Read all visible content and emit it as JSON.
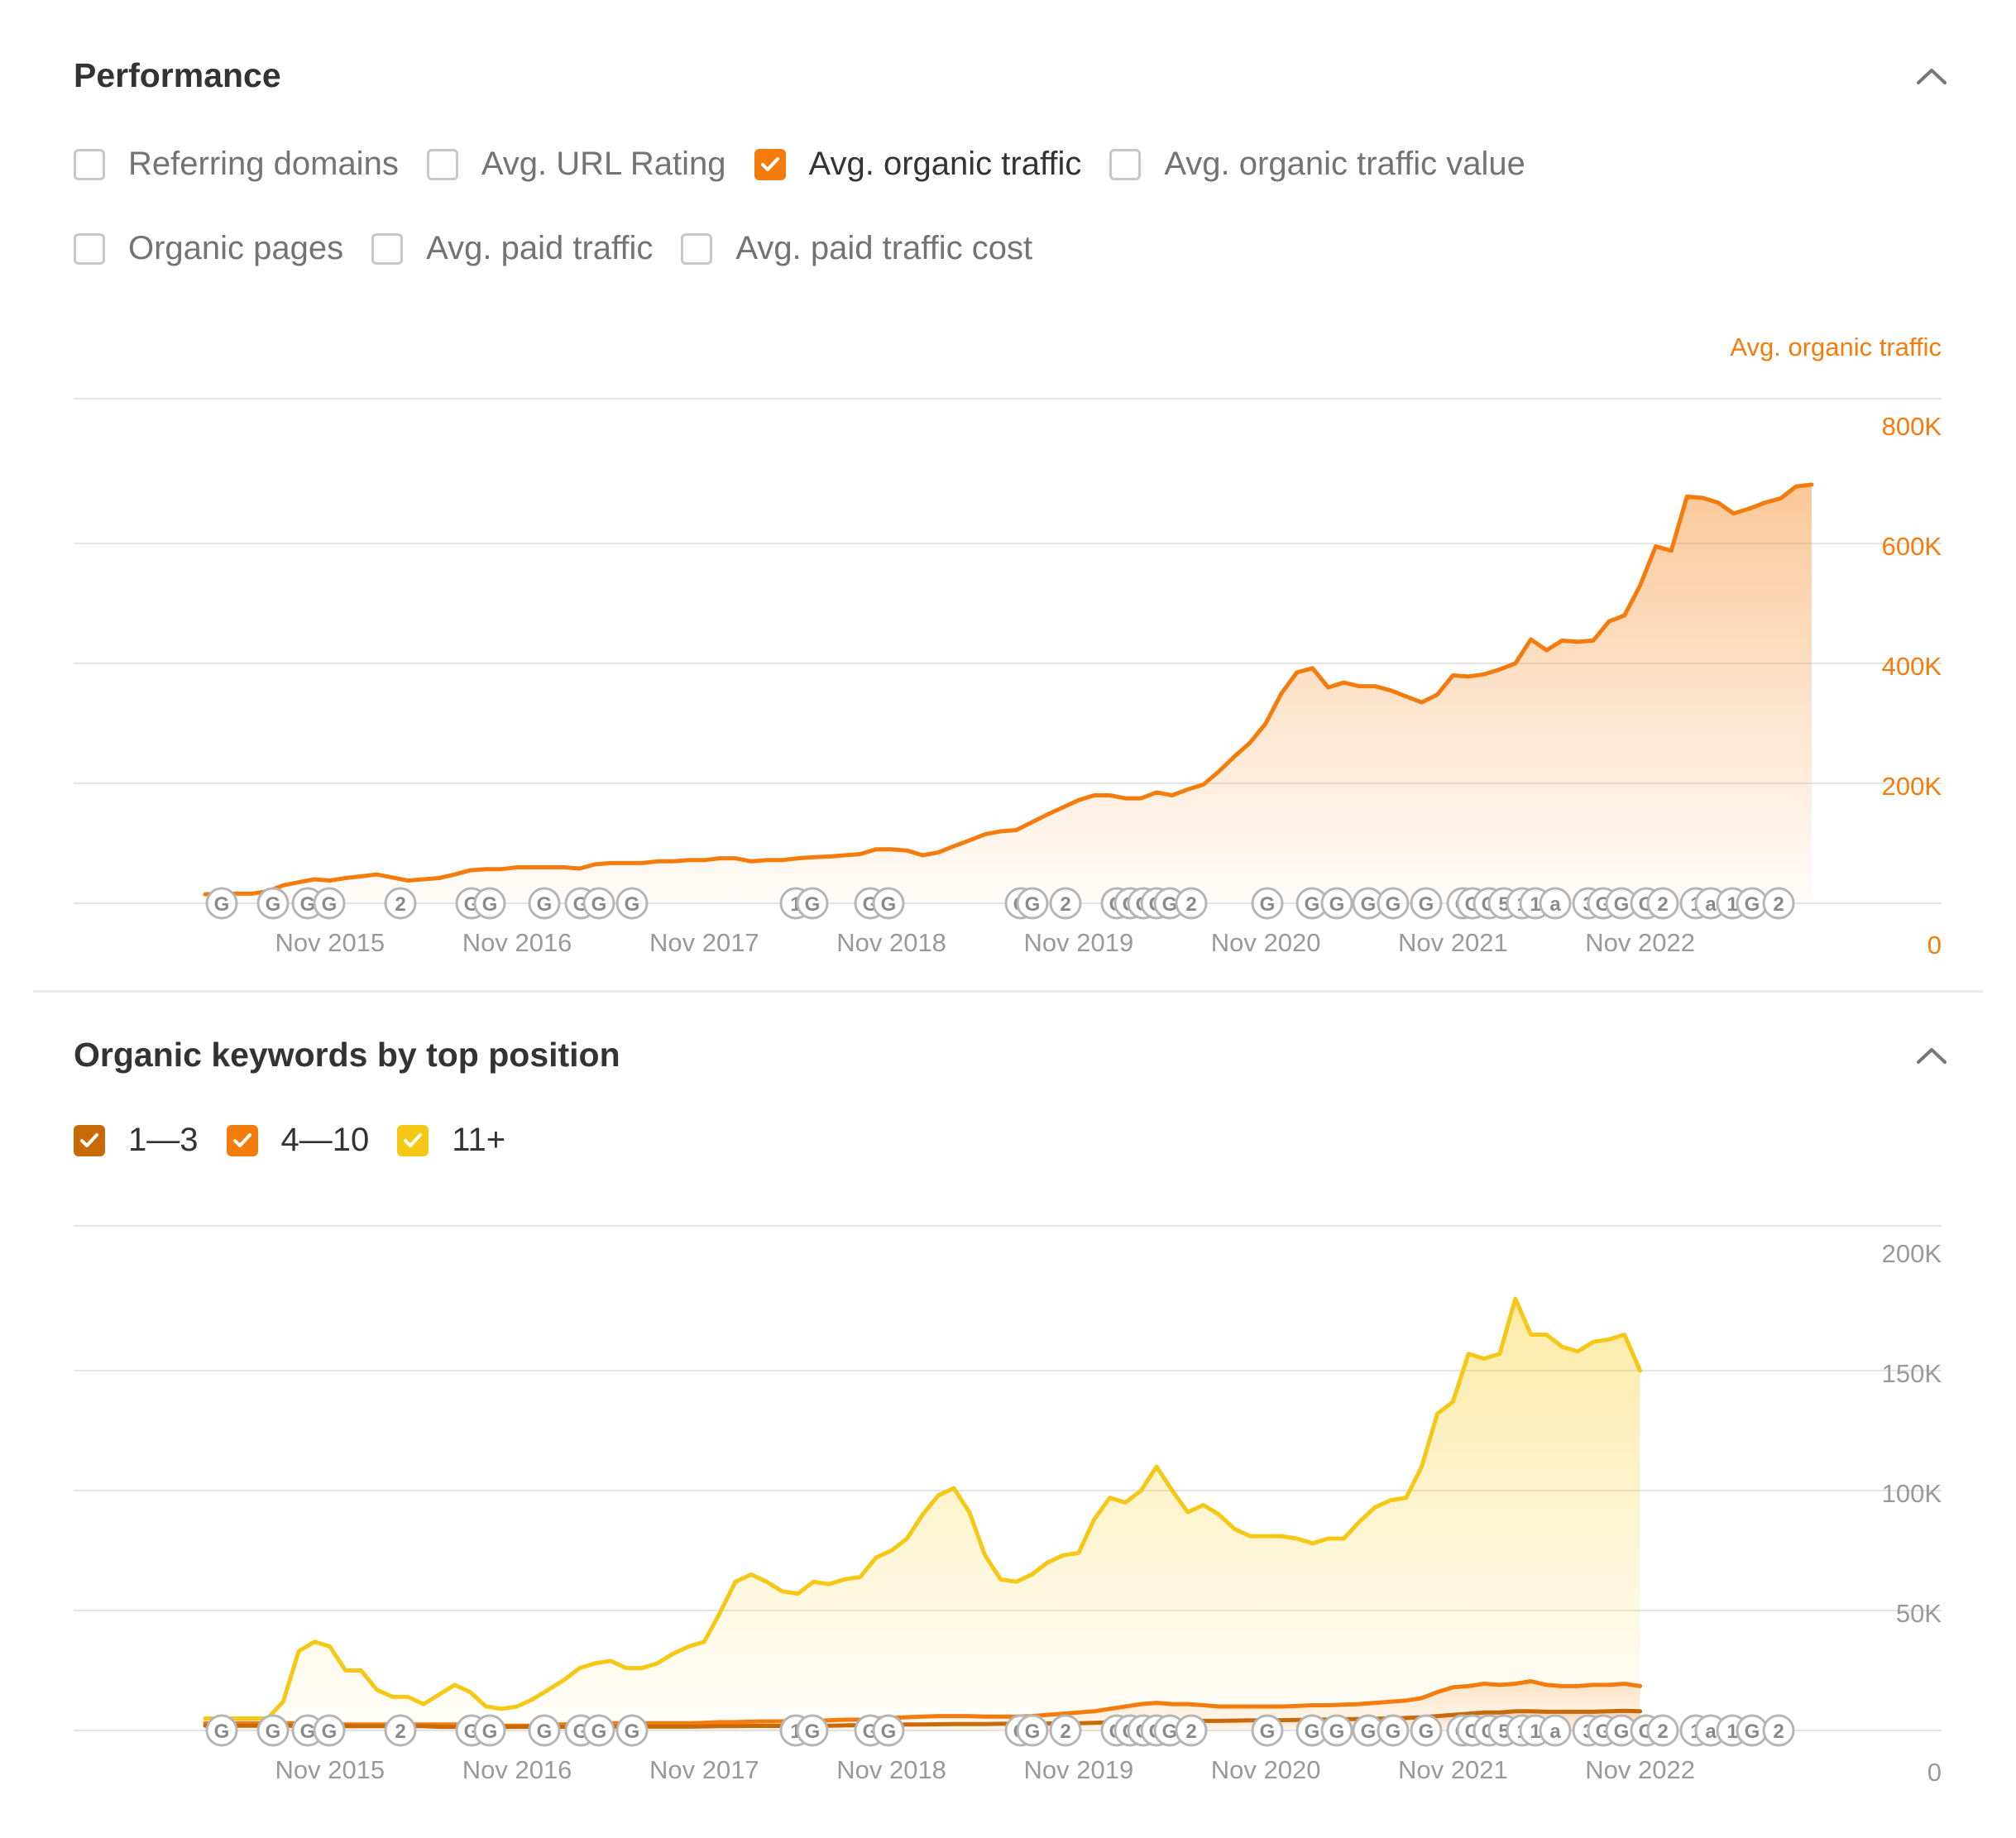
{
  "performance": {
    "title": "Performance",
    "options": [
      {
        "label": "Referring domains",
        "checked": false
      },
      {
        "label": "Avg. URL Rating",
        "checked": false
      },
      {
        "label": "Avg. organic traffic",
        "checked": true,
        "color": "#f47c0c"
      },
      {
        "label": "Avg. organic traffic value",
        "checked": false
      },
      {
        "label": "Organic pages",
        "checked": false
      },
      {
        "label": "Avg. paid traffic",
        "checked": false
      },
      {
        "label": "Avg. paid traffic cost",
        "checked": false
      }
    ],
    "collapse_icon": "chevron-up-icon"
  },
  "keywords": {
    "title": "Organic keywords by top position",
    "legend": [
      {
        "label": "1—3",
        "checked": true,
        "color": "#c86a08"
      },
      {
        "label": "4—10",
        "checked": true,
        "color": "#f47c0c"
      },
      {
        "label": "11+",
        "checked": true,
        "color": "#f6c816"
      }
    ],
    "collapse_icon": "chevron-up-icon"
  },
  "colors": {
    "traffic": "#f47c0c",
    "r13": "#c86a08",
    "r410": "#f47c0c",
    "r11": "#f6c816",
    "grid": "#e4e4e4",
    "tick": "#999999"
  },
  "chart_data": [
    {
      "type": "area",
      "title": "",
      "axis_title": "Avg. organic traffic",
      "x_tick_labels": [
        "Nov 2015",
        "Nov 2016",
        "Nov 2017",
        "Nov 2018",
        "Nov 2019",
        "Nov 2020",
        "Nov 2021",
        "Nov 2022"
      ],
      "y_tick_labels": [
        "0",
        "200K",
        "400K",
        "600K",
        "800K"
      ],
      "ylim": [
        0,
        800000
      ],
      "grid": true,
      "x_start": "2015-03",
      "series": [
        {
          "name": "Avg. organic traffic",
          "color": "#f47c0c",
          "values": [
            15000,
            16000,
            16000,
            16000,
            20000,
            30000,
            35000,
            40000,
            38000,
            42000,
            45000,
            48000,
            43000,
            38000,
            40000,
            42000,
            48000,
            55000,
            57000,
            57000,
            60000,
            60000,
            60000,
            60000,
            58000,
            65000,
            67000,
            67000,
            67000,
            70000,
            70000,
            72000,
            72000,
            75000,
            75000,
            70000,
            72000,
            72000,
            75000,
            77000,
            78000,
            80000,
            82000,
            90000,
            90000,
            88000,
            80000,
            85000,
            95000,
            105000,
            115000,
            120000,
            122000,
            135000,
            148000,
            160000,
            172000,
            180000,
            180000,
            175000,
            175000,
            185000,
            180000,
            190000,
            198000,
            220000,
            245000,
            268000,
            300000,
            350000,
            385000,
            392000,
            360000,
            368000,
            362000,
            362000,
            355000,
            345000,
            335000,
            348000,
            380000,
            378000,
            382000,
            390000,
            400000,
            440000,
            422000,
            438000,
            436000,
            438000,
            470000,
            480000,
            530000,
            595000,
            588000,
            678000,
            676000,
            668000,
            650000,
            658000,
            668000,
            675000,
            695000,
            698000
          ]
        }
      ]
    },
    {
      "type": "area",
      "title": "",
      "x_tick_labels": [
        "Nov 2015",
        "Nov 2016",
        "Nov 2017",
        "Nov 2018",
        "Nov 2019",
        "Nov 2020",
        "Nov 2021",
        "Nov 2022"
      ],
      "y_tick_labels": [
        "0",
        "50K",
        "100K",
        "150K",
        "200K"
      ],
      "ylim": [
        0,
        200000
      ],
      "grid": true,
      "x_start": "2015-03",
      "series": [
        {
          "name": "11+",
          "color": "#f6c816",
          "values": [
            5000,
            5000,
            5000,
            5000,
            5000,
            12000,
            33000,
            37000,
            35000,
            25000,
            25000,
            17000,
            14000,
            14000,
            11000,
            15000,
            19000,
            16000,
            10000,
            9000,
            10000,
            13000,
            17000,
            21000,
            26000,
            28000,
            29000,
            26000,
            26000,
            28000,
            32000,
            35000,
            37000,
            49000,
            62000,
            65000,
            62000,
            58000,
            57000,
            62000,
            61000,
            63000,
            64000,
            72000,
            75000,
            80000,
            90000,
            98000,
            101000,
            91000,
            73000,
            63000,
            62000,
            65000,
            70000,
            73000,
            74000,
            88000,
            97000,
            95000,
            100000,
            110000,
            100000,
            91000,
            94000,
            90000,
            84000,
            81000,
            81000,
            81000,
            80000,
            78000,
            80000,
            80000,
            87000,
            93000,
            96000,
            97000,
            110000,
            132000,
            137000,
            157000,
            155000,
            157000,
            180000,
            165000,
            165000,
            160000,
            158000,
            162000,
            163000,
            165000,
            150000
          ]
        },
        {
          "name": "4—10",
          "color": "#f47c0c",
          "values": [
            3000,
            3000,
            3000,
            3000,
            3000,
            3000,
            3000,
            3000,
            2500,
            2500,
            2500,
            2500,
            2500,
            2500,
            2500,
            2500,
            2500,
            2000,
            2000,
            2000,
            2000,
            2000,
            2500,
            2500,
            3000,
            3000,
            3000,
            3000,
            3000,
            3000,
            3000,
            3000,
            3200,
            3500,
            3500,
            3700,
            3800,
            3800,
            4000,
            4000,
            4200,
            4500,
            4500,
            5000,
            5200,
            5500,
            5800,
            6000,
            6000,
            6000,
            5800,
            5800,
            5800,
            6000,
            6500,
            7000,
            7500,
            8000,
            9000,
            10000,
            11000,
            11500,
            11000,
            11000,
            10500,
            10000,
            10000,
            10000,
            10000,
            10000,
            10200,
            10500,
            10500,
            10800,
            11000,
            11500,
            12000,
            12500,
            13500,
            16000,
            18000,
            18500,
            19500,
            19000,
            19500,
            20500,
            19000,
            18500,
            18500,
            19000,
            19000,
            19500,
            18500
          ]
        },
        {
          "name": "1—3",
          "color": "#c86a08",
          "values": [
            2000,
            2000,
            2000,
            2000,
            2000,
            2000,
            2000,
            2000,
            2000,
            1800,
            1800,
            1800,
            1800,
            1800,
            1800,
            1500,
            1500,
            1500,
            1500,
            1500,
            1500,
            1500,
            1500,
            1500,
            1500,
            1500,
            1500,
            1600,
            1600,
            1600,
            1600,
            1600,
            1700,
            1800,
            1800,
            1900,
            1900,
            1900,
            2000,
            2000,
            2000,
            2100,
            2200,
            2300,
            2400,
            2500,
            2500,
            2600,
            2700,
            2700,
            2700,
            2800,
            2800,
            2800,
            2900,
            3000,
            3000,
            3200,
            3400,
            3600,
            3800,
            4000,
            4000,
            4000,
            4000,
            4000,
            4100,
            4200,
            4200,
            4300,
            4400,
            4500,
            4600,
            4700,
            4800,
            4900,
            5000,
            5200,
            5500,
            6000,
            6500,
            7000,
            7500,
            7500,
            8000,
            8000,
            7800,
            7800,
            7800,
            7800,
            8000,
            8200,
            8000
          ]
        }
      ]
    }
  ],
  "annotation_markers": [
    "G",
    "G",
    "G",
    "G",
    "2",
    "G",
    "G",
    "G",
    "G",
    "G",
    "G",
    "1",
    "G",
    "G",
    "G",
    "G",
    "G",
    "2",
    "G",
    "G",
    "G",
    "G",
    "G",
    "2",
    "G",
    "G",
    "G",
    "G",
    "G",
    "G",
    "G",
    "G",
    "G",
    "5",
    "1",
    "1",
    "a",
    "3",
    "G",
    "G",
    "G",
    "2",
    "1",
    "a",
    "1",
    "G",
    "2"
  ]
}
